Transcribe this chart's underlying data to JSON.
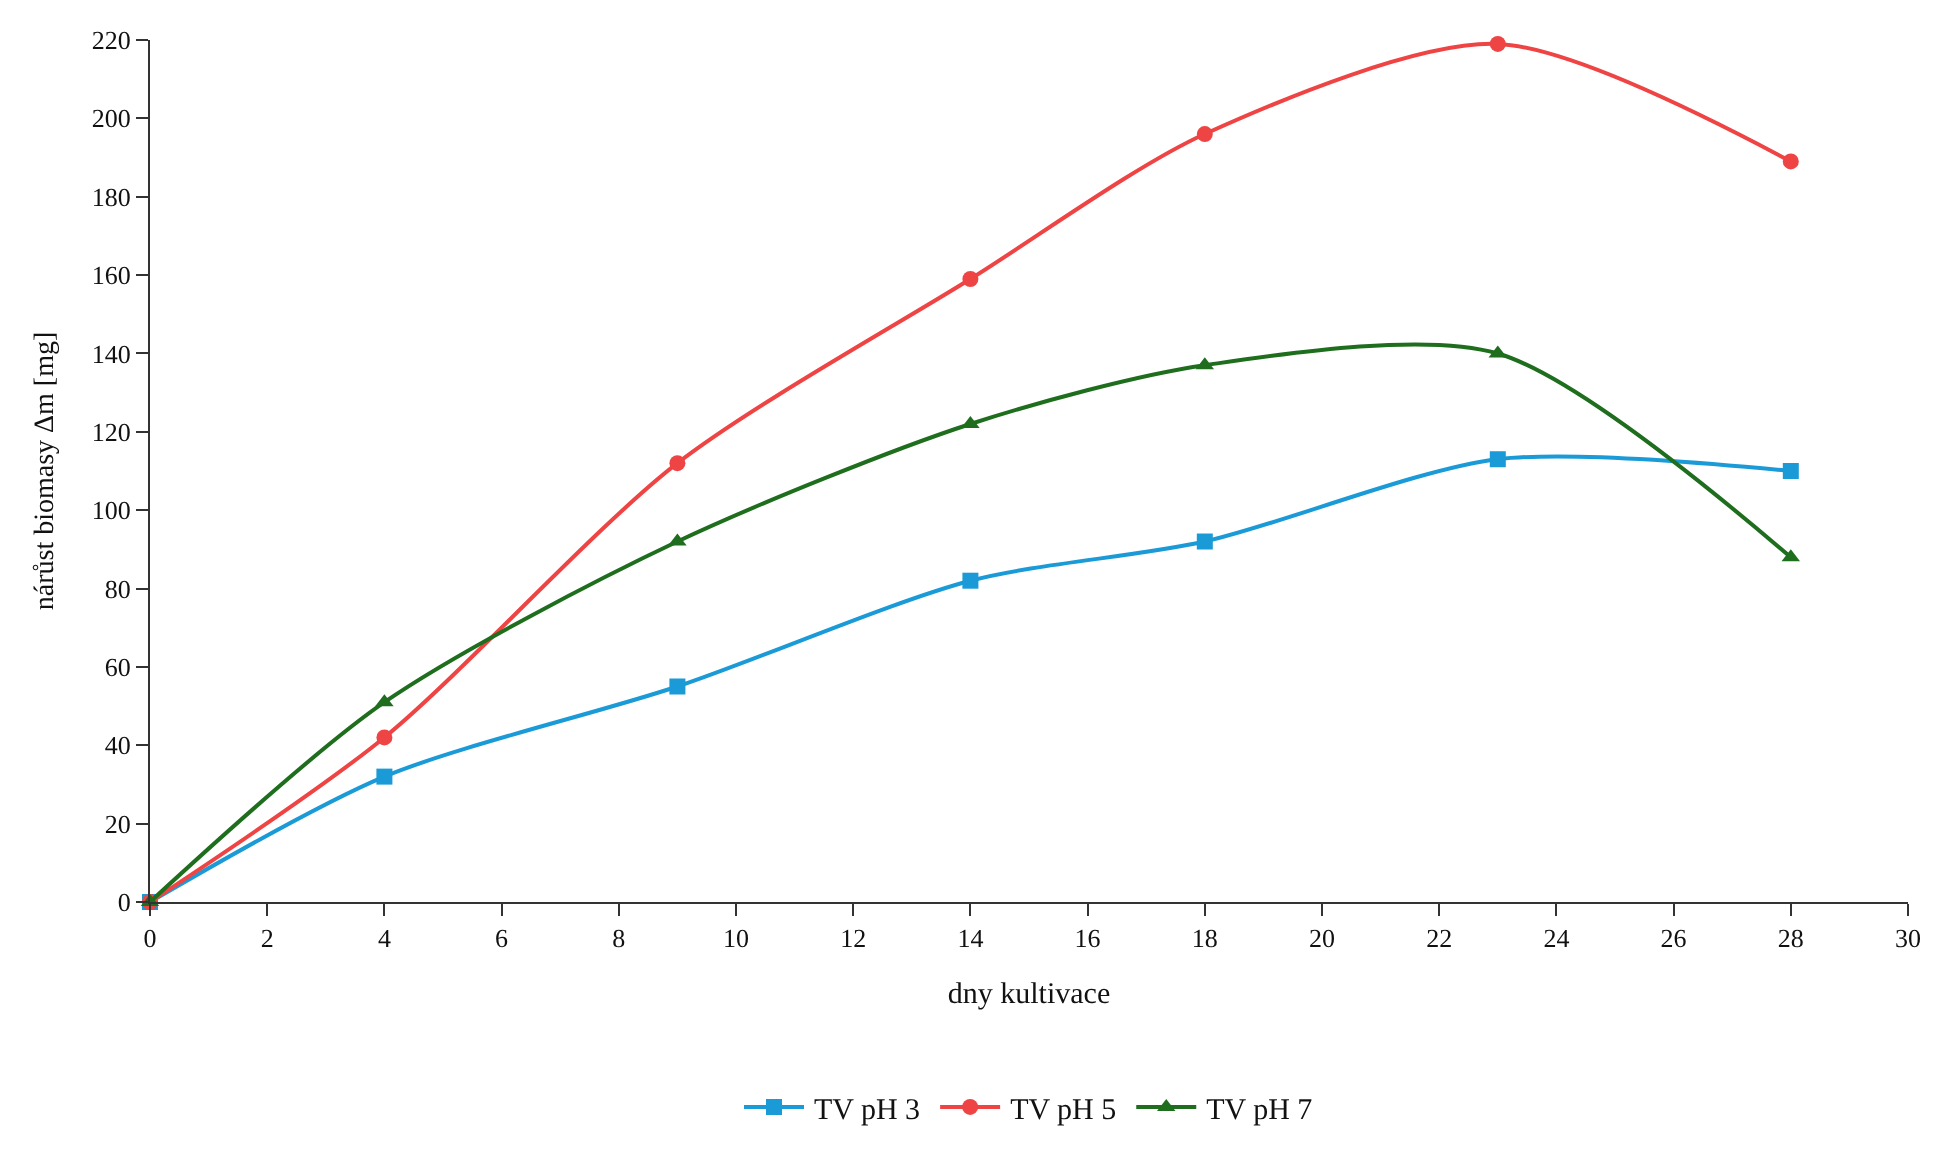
{
  "chart_data": {
    "type": "line",
    "xlabel": "dny kultivace",
    "ylabel": "nárůst biomasy Δm [mg]",
    "x": [
      0,
      4,
      9,
      14,
      18,
      23,
      28
    ],
    "series": [
      {
        "name": "TV pH 3",
        "color": "#1a9ad6",
        "marker": "square",
        "values": [
          0,
          32,
          55,
          82,
          92,
          113,
          110
        ]
      },
      {
        "name": "TV pH 5",
        "color": "#ef4444",
        "marker": "circle",
        "values": [
          0,
          42,
          112,
          159,
          196,
          219,
          189
        ]
      },
      {
        "name": "TV pH 7",
        "color": "#1e6e1e",
        "marker": "triangle",
        "values": [
          0,
          51,
          92,
          122,
          137,
          140,
          88
        ]
      }
    ],
    "xlim": [
      0,
      30
    ],
    "xticks": [
      0,
      2,
      4,
      6,
      8,
      10,
      12,
      14,
      16,
      18,
      20,
      22,
      24,
      26,
      28,
      30
    ],
    "ylim": [
      0,
      220
    ],
    "yticks": [
      0,
      20,
      40,
      60,
      80,
      100,
      120,
      140,
      160,
      180,
      200,
      220
    ],
    "legend": "bottom",
    "line_style": "solid"
  }
}
